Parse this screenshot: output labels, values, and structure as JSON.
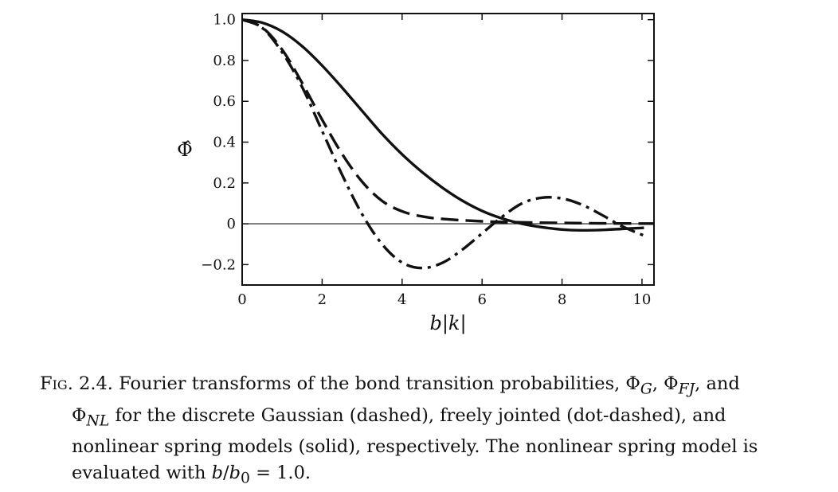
{
  "chart_data": {
    "type": "line",
    "xlabel": "b|k|",
    "ylabel": "Φ̂",
    "xlim": [
      0,
      10.3
    ],
    "ylim": [
      -0.3,
      1.03
    ],
    "x_ticks": [
      0,
      2,
      4,
      6,
      8,
      10
    ],
    "x_tick_labels": [
      "0",
      "2",
      "4",
      "6",
      "8",
      "10"
    ],
    "y_ticks": [
      -0.2,
      0,
      0.2,
      0.4,
      0.6,
      0.8,
      1.0
    ],
    "y_tick_labels": [
      "−0.2",
      "0",
      "0.2",
      "0.4",
      "0.6",
      "0.8",
      "1.0"
    ],
    "zero_line": true,
    "grid": false,
    "series": [
      {
        "style": "dashed",
        "x": [
          0,
          0.5,
          1,
          1.5,
          2,
          2.5,
          3,
          3.5,
          4,
          4.5,
          5,
          6,
          7,
          8,
          9,
          10.3
        ],
        "y": [
          1.0,
          0.962,
          0.853,
          0.69,
          0.51,
          0.342,
          0.206,
          0.112,
          0.061,
          0.036,
          0.024,
          0.012,
          0.007,
          0.004,
          0.002,
          0.001
        ]
      },
      {
        "style": "dot-dashed",
        "x": [
          0,
          0.5,
          1,
          1.5,
          2,
          2.5,
          3,
          3.5,
          4,
          4.5,
          5,
          5.5,
          6,
          6.5,
          7,
          7.5,
          8,
          8.5,
          9,
          9.5,
          10.05
        ],
        "y": [
          1.0,
          0.96,
          0.84,
          0.67,
          0.455,
          0.24,
          0.047,
          -0.1,
          -0.19,
          -0.217,
          -0.192,
          -0.128,
          -0.047,
          0.034,
          0.1,
          0.128,
          0.124,
          0.093,
          0.043,
          -0.012,
          -0.058
        ]
      },
      {
        "style": "solid",
        "x": [
          0,
          0.5,
          1,
          1.5,
          2,
          2.5,
          3,
          3.5,
          4,
          4.5,
          5,
          5.5,
          6,
          6.5,
          7,
          7.5,
          8,
          8.5,
          9,
          9.5,
          10.05
        ],
        "y": [
          1.0,
          0.985,
          0.942,
          0.87,
          0.775,
          0.667,
          0.553,
          0.44,
          0.34,
          0.253,
          0.178,
          0.114,
          0.063,
          0.026,
          0.0,
          -0.017,
          -0.028,
          -0.032,
          -0.03,
          -0.025,
          -0.02
        ]
      }
    ]
  },
  "caption": {
    "fig_label": "Fig. 2.4.",
    "line1": " Fourier transforms of the bond transition probabilities, Φ",
    "sub_g": "G",
    "sep1": ", Φ",
    "sub_fj": "FJ",
    "line1_end": ", and",
    "line2_start": "Φ",
    "sub_nl": "NL",
    "line2_rest": " for the discrete Gaussian (dashed), freely jointed (dot-dashed), and",
    "line3": "nonlinear spring models (solid), respectively. The nonlinear spring model is",
    "line4_start": "evaluated with ",
    "b_var": "b",
    "slash": "/",
    "b0_var": "b",
    "b0_sub": "0",
    "line4_end": " = 1.0."
  }
}
